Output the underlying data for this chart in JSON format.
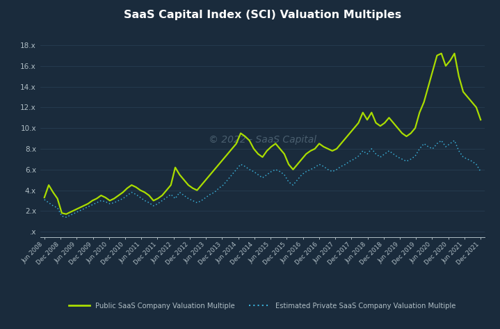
{
  "title": "SaaS Capital Index (SCI) Valuation Multiples",
  "background_color": "#1a2b3c",
  "grid_color": "#263d52",
  "text_color": "#b0bec5",
  "title_color": "#ffffff",
  "watermark": "© 2022 - SaaS Capital",
  "public_color": "#aadd00",
  "private_color": "#3ab0d8",
  "legend_public": "Public SaaS Company Valuation Multiple",
  "legend_private": "Estimated Private SaaS Company Valuation Multiple",
  "yticks": [
    0,
    2,
    4,
    6,
    8,
    10,
    12,
    14,
    16,
    18
  ],
  "ytick_labels": [
    ".x",
    "2.x",
    "4.x",
    "6.x",
    "8.x",
    "10.x",
    "12.x",
    "14.x",
    "16.x",
    "18.x"
  ],
  "ylim": [
    -0.5,
    19.5
  ],
  "public_values": [
    3.3,
    4.5,
    3.8,
    3.2,
    1.8,
    1.7,
    1.9,
    2.1,
    2.3,
    2.5,
    2.7,
    3.0,
    3.2,
    3.5,
    3.3,
    3.0,
    3.2,
    3.5,
    3.8,
    4.2,
    4.5,
    4.3,
    4.0,
    3.8,
    3.5,
    3.0,
    3.2,
    3.5,
    4.0,
    4.5,
    6.2,
    5.5,
    5.0,
    4.5,
    4.2,
    4.0,
    4.5,
    5.0,
    5.5,
    6.0,
    6.5,
    7.0,
    7.5,
    8.0,
    8.5,
    9.5,
    9.2,
    8.8,
    8.0,
    7.5,
    7.2,
    7.8,
    8.2,
    8.5,
    8.0,
    7.5,
    6.5,
    6.0,
    6.5,
    7.0,
    7.5,
    7.8,
    8.0,
    8.5,
    8.2,
    8.0,
    7.8,
    8.0,
    8.5,
    9.0,
    9.5,
    10.0,
    10.5,
    11.5,
    10.8,
    11.5,
    10.5,
    10.2,
    10.5,
    11.0,
    10.5,
    10.0,
    9.5,
    9.2,
    9.5,
    10.0,
    11.5,
    12.5,
    14.0,
    15.5,
    17.0,
    17.2,
    16.0,
    16.5,
    17.2,
    15.0,
    13.5,
    13.0,
    12.5,
    12.0,
    10.8
  ],
  "private_values": [
    3.1,
    2.8,
    2.5,
    2.3,
    1.5,
    1.4,
    1.6,
    1.8,
    2.0,
    2.2,
    2.4,
    2.6,
    2.8,
    3.0,
    2.9,
    2.7,
    2.8,
    3.0,
    3.2,
    3.5,
    3.8,
    3.6,
    3.3,
    3.0,
    2.8,
    2.5,
    2.7,
    3.0,
    3.3,
    3.6,
    3.2,
    3.8,
    3.5,
    3.2,
    3.0,
    2.8,
    3.0,
    3.3,
    3.6,
    3.8,
    4.2,
    4.5,
    5.0,
    5.5,
    6.0,
    6.5,
    6.3,
    6.0,
    5.8,
    5.5,
    5.2,
    5.5,
    5.8,
    6.0,
    5.8,
    5.5,
    4.8,
    4.5,
    5.0,
    5.5,
    5.8,
    6.0,
    6.2,
    6.5,
    6.3,
    6.0,
    5.8,
    6.0,
    6.3,
    6.5,
    6.8,
    7.0,
    7.3,
    7.8,
    7.5,
    8.0,
    7.5,
    7.2,
    7.5,
    7.8,
    7.5,
    7.2,
    7.0,
    6.8,
    7.0,
    7.3,
    8.0,
    8.5,
    8.2,
    8.0,
    8.5,
    8.8,
    8.2,
    8.5,
    8.8,
    7.8,
    7.2,
    7.0,
    6.8,
    6.5,
    5.8
  ],
  "n_points": 101,
  "xtick_labels": [
    "Jun 2008",
    "Dec 2008",
    "Jun 2009",
    "Dec 2009",
    "Jun 2010",
    "Dec 2010",
    "Jun 2011",
    "Dec 2011",
    "Jun 2012",
    "Dec 2012",
    "Jun 2013",
    "Dec 2013",
    "Jun 2014",
    "Dec 2014",
    "Jun 2015",
    "Dec 2015",
    "Jun 2016",
    "Dec 2016",
    "Jun 2017",
    "Dec 2017",
    "Jun 2018",
    "Dec 2018",
    "Jun 2019",
    "Dec 2019",
    "Jun 2020",
    "Dec 2020",
    "Jun 2021",
    "Dec 2021"
  ]
}
